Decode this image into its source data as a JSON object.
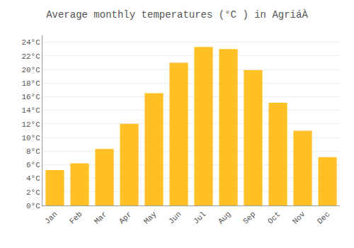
{
  "chart_data": {
    "type": "bar",
    "title": "Average monthly temperatures (°C ) in AgriáÀ",
    "categories": [
      "Jan",
      "Feb",
      "Mar",
      "Apr",
      "May",
      "Jun",
      "Jul",
      "Aug",
      "Sep",
      "Oct",
      "Nov",
      "Dec"
    ],
    "values": [
      5.2,
      6.2,
      8.3,
      12.0,
      16.5,
      21.0,
      23.3,
      23.0,
      19.9,
      15.1,
      11.0,
      7.1
    ],
    "color": "#FFC125",
    "ylim": [
      0,
      25
    ],
    "yticks": [
      {
        "value": 0,
        "label": "0°C"
      },
      {
        "value": 2,
        "label": "2°C"
      },
      {
        "value": 4,
        "label": "4°C"
      },
      {
        "value": 6,
        "label": "6°C"
      },
      {
        "value": 8,
        "label": "8°C"
      },
      {
        "value": 10,
        "label": "10°C"
      },
      {
        "value": 12,
        "label": "12°C"
      },
      {
        "value": 14,
        "label": "14°C"
      },
      {
        "value": 16,
        "label": "16°C"
      },
      {
        "value": 18,
        "label": "18°C"
      },
      {
        "value": 20,
        "label": "20°C"
      },
      {
        "value": 22,
        "label": "22°C"
      },
      {
        "value": 24,
        "label": "24°C"
      }
    ],
    "grid": true
  }
}
